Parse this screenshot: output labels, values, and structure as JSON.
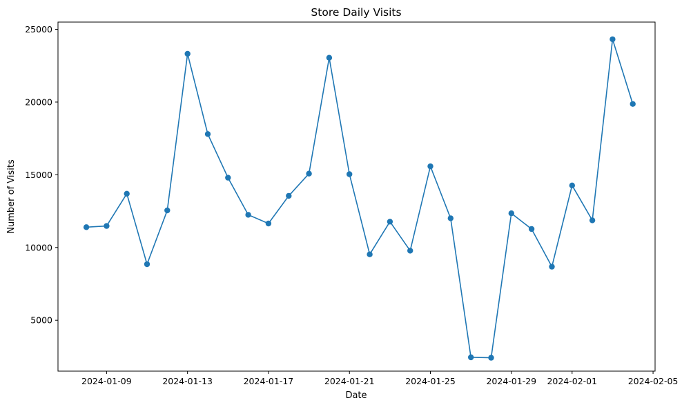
{
  "chart_data": {
    "type": "line",
    "title": "Store Daily Visits",
    "xlabel": "Date",
    "ylabel": "Number of Visits",
    "x_tick_labels": [
      "2024-01-09",
      "2024-01-13",
      "2024-01-17",
      "2024-01-21",
      "2024-01-25",
      "2024-01-29",
      "2024-02-01",
      "2024-02-05"
    ],
    "y_ticks": [
      5000,
      10000,
      15000,
      20000,
      25000
    ],
    "ylim": [
      1500,
      25500
    ],
    "xlim": [
      "2024-01-07",
      "2024-02-05"
    ],
    "grid": false,
    "series": [
      {
        "color": "#1f77b4",
        "marker": "circle",
        "x": [
          "2024-01-08",
          "2024-01-09",
          "2024-01-10",
          "2024-01-11",
          "2024-01-12",
          "2024-01-13",
          "2024-01-14",
          "2024-01-15",
          "2024-01-16",
          "2024-01-17",
          "2024-01-18",
          "2024-01-19",
          "2024-01-20",
          "2024-01-21",
          "2024-01-22",
          "2024-01-23",
          "2024-01-24",
          "2024-01-25",
          "2024-01-26",
          "2024-01-27",
          "2024-01-28",
          "2024-01-29",
          "2024-01-30",
          "2024-01-31",
          "2024-02-01",
          "2024-02-02",
          "2024-02-03",
          "2024-02-04"
        ],
        "values": [
          11400,
          11480,
          13700,
          8850,
          12550,
          23320,
          17800,
          14800,
          12250,
          11650,
          13550,
          15080,
          23050,
          15040,
          9530,
          11780,
          9780,
          15580,
          12010,
          2450,
          2420,
          12350,
          11270,
          8680,
          14270,
          11870,
          24320,
          19870
        ]
      }
    ]
  }
}
